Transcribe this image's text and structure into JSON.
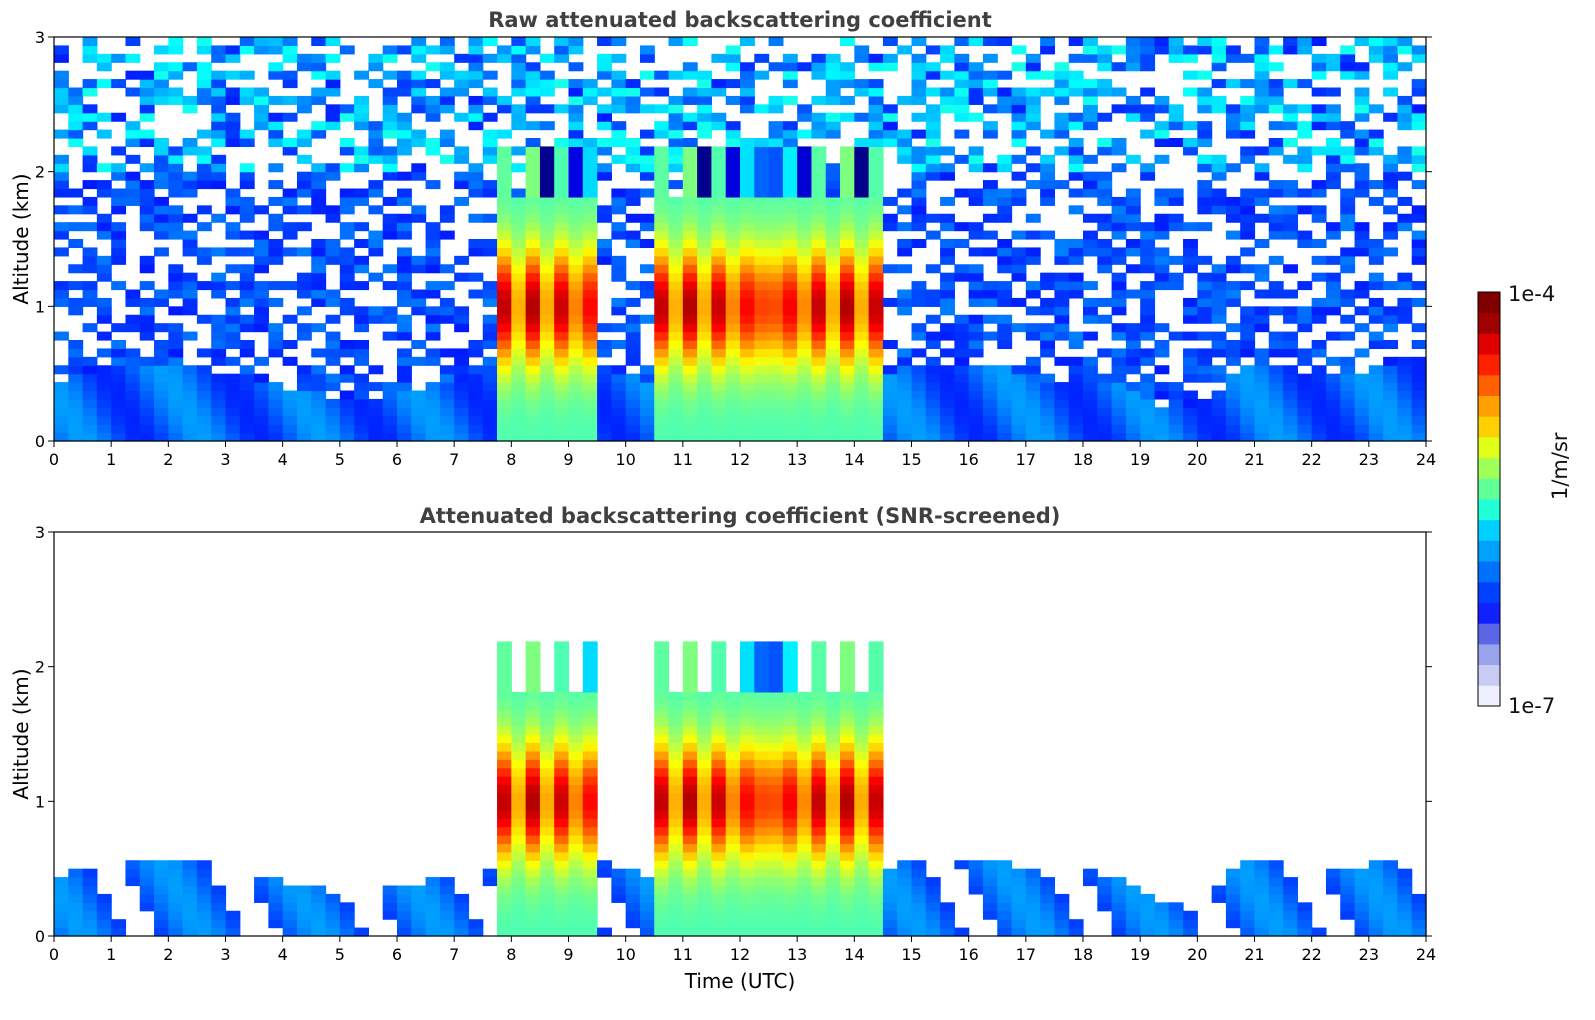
{
  "chart_data": [
    {
      "type": "heatmap",
      "title": "Raw attenuated backscattering coefficient",
      "xlabel": "",
      "ylabel": "Altitude (km)",
      "xlim": [
        0,
        24
      ],
      "ylim": [
        0,
        3
      ],
      "x_ticks": [
        "0",
        "1",
        "2",
        "3",
        "4",
        "5",
        "6",
        "7",
        "8",
        "9",
        "10",
        "11",
        "12",
        "13",
        "14",
        "15",
        "16",
        "17",
        "18",
        "19",
        "20",
        "21",
        "22",
        "23",
        "24"
      ],
      "y_ticks": [
        "0",
        "1",
        "2",
        "3"
      ],
      "screened": false
    },
    {
      "type": "heatmap",
      "title": "Attenuated backscattering coefficient (SNR-screened)",
      "xlabel": "Time (UTC)",
      "ylabel": "Altitude (km)",
      "xlim": [
        0,
        24
      ],
      "ylim": [
        0,
        3
      ],
      "x_ticks": [
        "0",
        "1",
        "2",
        "3",
        "4",
        "5",
        "6",
        "7",
        "8",
        "9",
        "10",
        "11",
        "12",
        "13",
        "14",
        "15",
        "16",
        "17",
        "18",
        "19",
        "20",
        "21",
        "22",
        "23",
        "24"
      ],
      "y_ticks": [
        "0",
        "1",
        "2",
        "3"
      ],
      "screened": true
    }
  ],
  "colorbar": {
    "max_label": "1e-4",
    "min_label": "1e-7",
    "unit_label": "1/m/sr",
    "scale": "log",
    "colormap": "jet",
    "colors": [
      "#eef0ff",
      "#c8ccf5",
      "#9aa2ec",
      "#5a66e6",
      "#1020ff",
      "#0040ff",
      "#0070ff",
      "#00a0ff",
      "#00d0ff",
      "#20ffd8",
      "#60ff98",
      "#a0ff58",
      "#e0ff18",
      "#ffd000",
      "#ffa000",
      "#ff6000",
      "#ff2000",
      "#e00000",
      "#a00000",
      "#800000"
    ]
  }
}
